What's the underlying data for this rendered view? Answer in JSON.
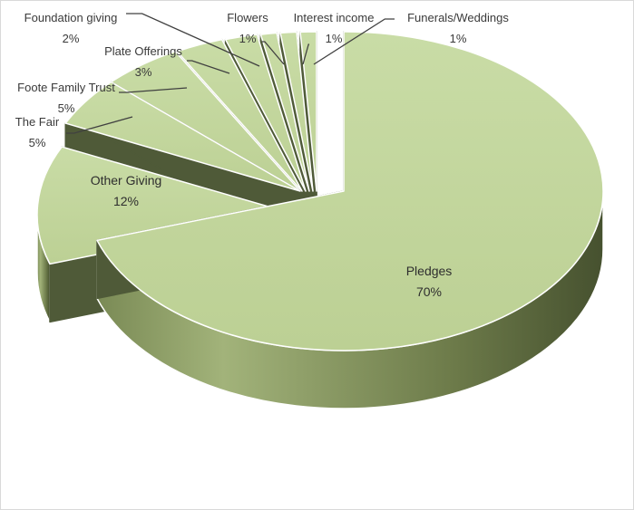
{
  "chart_data": {
    "type": "pie",
    "style": "3d-exploded",
    "categories": [
      "Pledges",
      "Other Giving",
      "The Fair",
      "Foote Family Trust",
      "Plate Offerings",
      "Foundation giving",
      "Flowers",
      "Interest income",
      "Funerals/Weddings"
    ],
    "values": [
      70,
      12,
      5,
      5,
      3,
      2,
      1,
      1,
      1
    ],
    "labels": [
      {
        "name": "Pledges",
        "pct": "70%"
      },
      {
        "name": "Other Giving",
        "pct": "12%"
      },
      {
        "name": "The Fair",
        "pct": "5%"
      },
      {
        "name": "Foote Family Trust",
        "pct": "5%"
      },
      {
        "name": "Plate Offerings",
        "pct": "3%"
      },
      {
        "name": "Foundation giving",
        "pct": "2%"
      },
      {
        "name": "Flowers",
        "pct": "1%"
      },
      {
        "name": "Interest income",
        "pct": "1%"
      },
      {
        "name": "Funerals/Weddings",
        "pct": "1%"
      }
    ],
    "colors": {
      "top": "#c2d69b",
      "side_dark": "#4f5a38",
      "side_light": "#8c9b66",
      "edge": "#ffffff",
      "leader": "#404040"
    }
  }
}
